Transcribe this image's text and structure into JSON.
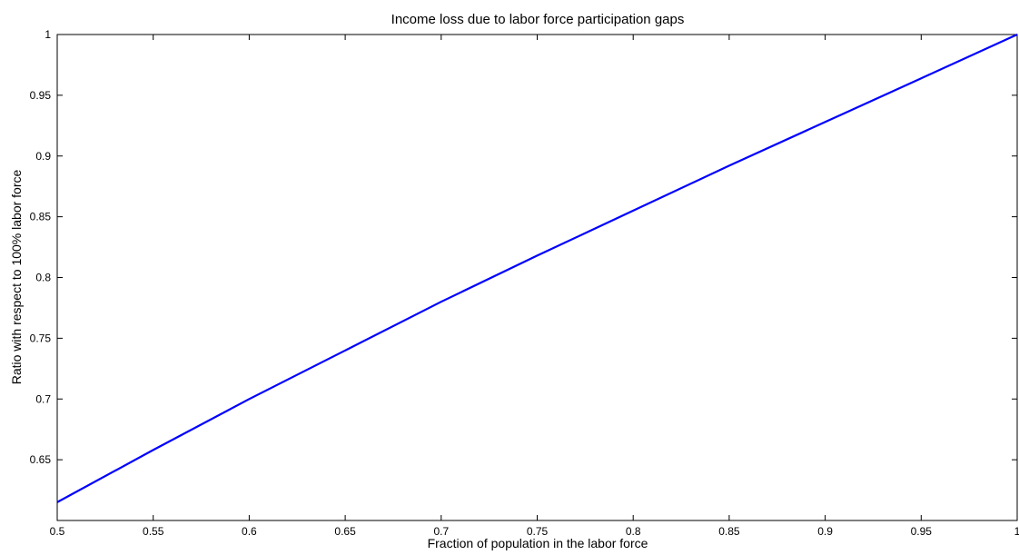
{
  "chart_data": {
    "type": "line",
    "title": "Income loss due to labor force participation gaps",
    "xlabel": "Fraction of population in the labor force",
    "ylabel": "Ratio with respect to 100% labor force",
    "xlim": [
      0.5,
      1
    ],
    "ylim": [
      0.6,
      1
    ],
    "x_ticks": [
      "0.5",
      "0.55",
      "0.6",
      "0.65",
      "0.7",
      "0.75",
      "0.8",
      "0.85",
      "0.9",
      "0.95",
      "1"
    ],
    "y_ticks": [
      "0.65",
      "0.7",
      "0.75",
      "0.8",
      "0.85",
      "0.9",
      "0.95",
      "1"
    ],
    "grid": false,
    "series": [
      {
        "color": "#0000ff",
        "x": [
          0.5,
          0.55,
          0.6,
          0.65,
          0.7,
          0.75,
          0.8,
          0.85,
          0.9,
          0.95,
          1.0
        ],
        "y": [
          0.615,
          0.658,
          0.7,
          0.74,
          0.78,
          0.818,
          0.855,
          0.892,
          0.928,
          0.964,
          1.0
        ]
      }
    ]
  }
}
